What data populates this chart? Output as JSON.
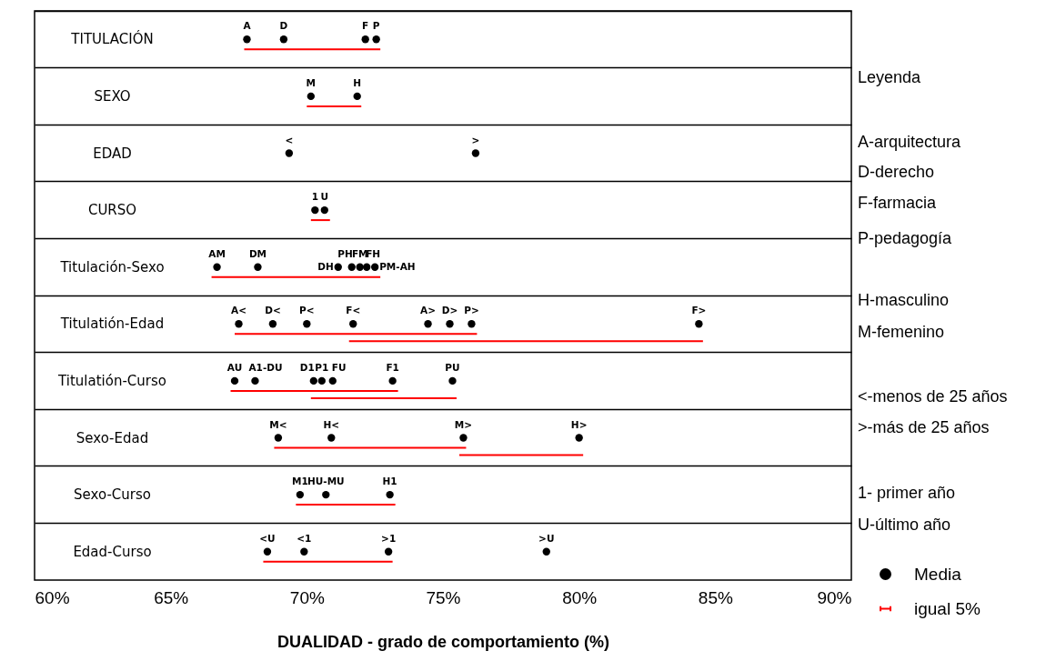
{
  "chart_data": {
    "type": "scatter",
    "orientation": "horizontal",
    "xlabel": "DUALIDAD - grado de comportamiento (%)",
    "marker": "circle",
    "legend": "bottom right",
    "categories": [
      "TITULACIÓN",
      "SEXO",
      "EDAD",
      "CURSO",
      "Titulación-Sexo",
      "Titulatión-Edad",
      "Titulatión-Curso",
      "Sexo-Edad",
      "Sexo-Curso",
      "Edad-Curso"
    ],
    "xlim": [
      60,
      90
    ],
    "xticks": [
      {
        "value": 60,
        "label": "60%"
      },
      {
        "value": 65,
        "label": "65%"
      },
      {
        "value": 70,
        "label": "70%"
      },
      {
        "value": 75,
        "label": "75%"
      },
      {
        "value": 80,
        "label": "80%"
      },
      {
        "value": 85,
        "label": "85%"
      },
      {
        "value": 90,
        "label": "90%"
      }
    ],
    "annotations": [
      "Leyenda",
      "A-arquitectura",
      "D-derecho",
      "F-farmacia",
      "P-pedagogía",
      "H-masculino",
      "M-femenino",
      "<-menos de 25 años",
      ">-más de 25 años",
      "1- primer año",
      "U-último año",
      {
        "text": "1",
        "x": 70.3,
        "y": "CURSO"
      }
    ],
    "series": [
      {
        "name": "Media",
        "color": "#000000",
        "values": [
          67.8,
          70.15,
          69.35,
          70.3,
          66.7,
          67.5,
          67.35,
          68.95,
          69.75,
          68.55
        ],
        "value_labels": [
          "A",
          "M",
          "<",
          null,
          "AM",
          "A<",
          "AU",
          "M<",
          "M1",
          "<U"
        ]
      },
      {
        "type": "bar",
        "name": "igual 5%",
        "color": "#ff0000",
        "base": [
          67.7,
          70.0,
          null,
          70.15,
          66.5,
          67.35,
          67.2,
          68.8,
          69.6,
          68.4
        ],
        "values": [
          5.0,
          2.0,
          null,
          0.7,
          6.2,
          8.9,
          6.15,
          7.05,
          3.65,
          4.75
        ]
      },
      {
        "type": "bar",
        "color": "#ff0000",
        "base": [
          null,
          null,
          null,
          null,
          null,
          71.55,
          70.15,
          75.6,
          null,
          null
        ],
        "values": [
          null,
          null,
          null,
          null,
          null,
          13.0,
          5.35,
          4.55,
          null,
          null
        ]
      },
      {
        "color": "#000000",
        "values": [
          69.15,
          71.85,
          76.2,
          70.65,
          68.2,
          68.75,
          68.1,
          70.9,
          70.7,
          69.9
        ],
        "value_labels": [
          "D",
          "H",
          ">",
          "U",
          "DM",
          "D<",
          "A1-DU",
          "H<",
          "HU-MU",
          "<1"
        ]
      },
      {
        "color": "#000000",
        "values": [
          72.15,
          null,
          null,
          null,
          71.15,
          70.0,
          70.25,
          75.75,
          73.05,
          73.0
        ],
        "value_labels": [
          "F",
          null,
          null,
          null,
          "DH",
          "P<",
          "D1",
          "M>",
          "H1",
          ">1"
        ]
      },
      {
        "color": "#000000",
        "values": [
          72.55,
          null,
          null,
          null,
          71.65,
          71.7,
          70.55,
          80.0,
          null,
          78.8
        ],
        "value_labels": [
          "P",
          null,
          null,
          null,
          "PH",
          "F<",
          "P1",
          "H>",
          null,
          ">U"
        ]
      },
      {
        "color": "#000000",
        "values": [
          null,
          null,
          null,
          null,
          71.95,
          74.45,
          70.95,
          null,
          null,
          null
        ],
        "value_labels": [
          null,
          null,
          null,
          null,
          "FM",
          "A>",
          "FU",
          null,
          null,
          null
        ]
      },
      {
        "color": "#000000",
        "values": [
          null,
          null,
          null,
          null,
          72.2,
          75.25,
          73.15,
          null,
          null,
          null
        ],
        "value_labels": [
          null,
          null,
          null,
          null,
          "FH",
          "D>",
          "F1",
          null,
          null,
          null
        ]
      },
      {
        "color": "#000000",
        "values": [
          null,
          null,
          null,
          null,
          72.5,
          76.05,
          75.35,
          null,
          null,
          null
        ],
        "value_labels": [
          null,
          null,
          null,
          null,
          "PM-AH",
          "P>",
          "PU",
          null,
          null,
          null
        ]
      },
      {
        "color": "#000000",
        "values": [
          null,
          null,
          null,
          null,
          null,
          84.4,
          null,
          null,
          null,
          null
        ],
        "value_labels": [
          null,
          null,
          null,
          null,
          null,
          "F>",
          null,
          null,
          null,
          null
        ]
      }
    ]
  }
}
